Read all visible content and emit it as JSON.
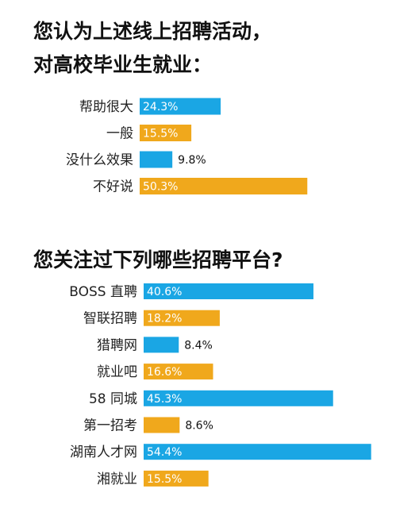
{
  "titles": {
    "chart1_line1": "您认为上述线上招聘活动，",
    "chart1_line2": "对高校毕业生就业：",
    "chart2": "您关注过下列哪些招聘平台?"
  },
  "colors": {
    "blue": "#1aa6e4",
    "orange": "#f0a81c"
  },
  "chart_data": [
    {
      "type": "bar",
      "orientation": "horizontal",
      "title": "您认为上述线上招聘活动，对高校毕业生就业：",
      "categories": [
        "帮助很大",
        "一般",
        "没什么效果",
        "不好说"
      ],
      "values": [
        24.3,
        15.5,
        9.8,
        50.3
      ],
      "value_labels": [
        "24.3%",
        "15.5%",
        "9.8%",
        "50.3%"
      ],
      "bar_colors": [
        "#1aa6e4",
        "#f0a81c",
        "#1aa6e4",
        "#f0a81c"
      ],
      "unit": "%"
    },
    {
      "type": "bar",
      "orientation": "horizontal",
      "title": "您关注过下列哪些招聘平台?",
      "categories": [
        "BOSS 直聘",
        "智联招聘",
        "猎聘网",
        "就业吧",
        "58 同城",
        "第一招考",
        "湖南人才网",
        "湘就业"
      ],
      "values": [
        40.6,
        18.2,
        8.4,
        16.6,
        45.3,
        8.6,
        54.4,
        15.5
      ],
      "value_labels": [
        "40.6%",
        "18.2%",
        "8.4%",
        "16.6%",
        "45.3%",
        "8.6%",
        "54.4%",
        "15.5%"
      ],
      "bar_colors": [
        "#1aa6e4",
        "#f0a81c",
        "#1aa6e4",
        "#f0a81c",
        "#1aa6e4",
        "#f0a81c",
        "#1aa6e4",
        "#f0a81c"
      ],
      "unit": "%"
    }
  ]
}
